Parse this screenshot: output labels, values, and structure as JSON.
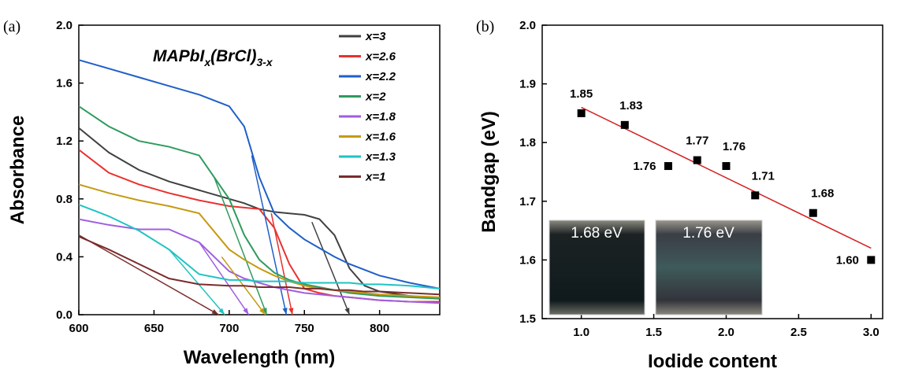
{
  "chart_data": [
    {
      "type": "line",
      "panel_label": "(a)",
      "title_parts": [
        "MAPbI",
        "x",
        "(BrCl)",
        "3-x"
      ],
      "x_label": "Wavelength (nm)",
      "y_label": "Absorbance",
      "x": [
        600,
        620,
        640,
        660,
        680,
        700,
        710,
        720,
        730,
        740,
        750,
        760,
        770,
        780,
        790,
        800,
        820,
        840
      ],
      "series": [
        {
          "name": "x=3",
          "color": "#404040",
          "values": [
            1.29,
            1.12,
            1.0,
            0.92,
            0.86,
            0.8,
            0.77,
            0.73,
            0.71,
            0.7,
            0.69,
            0.66,
            0.55,
            0.32,
            0.2,
            0.16,
            0.13,
            0.11
          ],
          "tangent_x": [
            755,
            780
          ],
          "tangent_y": [
            0.64,
            0
          ]
        },
        {
          "name": "x=2.6",
          "color": "#e8312f",
          "values": [
            1.14,
            0.98,
            0.9,
            0.84,
            0.79,
            0.75,
            0.74,
            0.73,
            0.6,
            0.35,
            0.18,
            0.15,
            0.13,
            0.12,
            0.11,
            0.1,
            0.09,
            0.09
          ],
          "tangent_x": [
            728,
            742
          ],
          "tangent_y": [
            0.7,
            0
          ]
        },
        {
          "name": "x=2.2",
          "color": "#1f5fc9",
          "values": [
            1.76,
            1.7,
            1.64,
            1.58,
            1.52,
            1.44,
            1.3,
            0.95,
            0.7,
            0.6,
            0.52,
            0.46,
            0.4,
            0.35,
            0.31,
            0.27,
            0.22,
            0.18
          ],
          "tangent_x": [
            715,
            738
          ],
          "tangent_y": [
            1.1,
            0
          ]
        },
        {
          "name": "x=2",
          "color": "#2e9a5e",
          "values": [
            1.44,
            1.3,
            1.2,
            1.16,
            1.1,
            0.8,
            0.55,
            0.38,
            0.29,
            0.24,
            0.21,
            0.19,
            0.17,
            0.15,
            0.14,
            0.13,
            0.12,
            0.11
          ],
          "tangent_x": [
            690,
            725
          ],
          "tangent_y": [
            0.95,
            0
          ]
        },
        {
          "name": "x=1.8",
          "color": "#a05ee0",
          "values": [
            0.66,
            0.62,
            0.59,
            0.59,
            0.5,
            0.3,
            0.25,
            0.22,
            0.19,
            0.17,
            0.15,
            0.14,
            0.13,
            0.12,
            0.11,
            0.1,
            0.09,
            0.08
          ],
          "tangent_x": [
            680,
            713
          ],
          "tangent_y": [
            0.5,
            0
          ]
        },
        {
          "name": "x=1.6",
          "color": "#c49a12",
          "values": [
            0.9,
            0.84,
            0.79,
            0.75,
            0.7,
            0.45,
            0.38,
            0.32,
            0.27,
            0.23,
            0.2,
            0.18,
            0.17,
            0.16,
            0.15,
            0.14,
            0.13,
            0.12
          ],
          "tangent_x": [
            695,
            724
          ],
          "tangent_y": [
            0.4,
            0
          ]
        },
        {
          "name": "x=1.3",
          "color": "#1fc3c3",
          "values": [
            0.76,
            0.68,
            0.58,
            0.45,
            0.28,
            0.24,
            0.24,
            0.23,
            0.23,
            0.23,
            0.22,
            0.22,
            0.22,
            0.22,
            0.21,
            0.21,
            0.2,
            0.18
          ],
          "tangent_x": [
            660,
            697
          ],
          "tangent_y": [
            0.45,
            0
          ]
        },
        {
          "name": "x=1",
          "color": "#7a2c2c",
          "values": [
            0.54,
            0.45,
            0.35,
            0.25,
            0.21,
            0.2,
            0.2,
            0.19,
            0.19,
            0.19,
            0.18,
            0.18,
            0.17,
            0.17,
            0.16,
            0.16,
            0.15,
            0.14
          ],
          "tangent_x": [
            600,
            693
          ],
          "tangent_y": [
            0.55,
            0
          ]
        }
      ],
      "xlim": [
        600,
        840
      ],
      "xticks": [
        600,
        650,
        700,
        750,
        800
      ],
      "ylim": [
        0,
        2.0
      ],
      "yticks": [
        {
          "value": 0,
          "label": "0.0"
        },
        {
          "value": 0.4,
          "label": "0.4"
        },
        {
          "value": 0.8,
          "label": "0.8"
        },
        {
          "value": 1.2,
          "label": "1.2"
        },
        {
          "value": 1.6,
          "label": "1.6"
        },
        {
          "value": 2.0,
          "label": "2.0"
        }
      ],
      "legend": "upper right"
    },
    {
      "type": "scatter",
      "panel_label": "(b)",
      "x_label": "Iodide content",
      "y_label": "Bandgap (eV)",
      "x": [
        1.0,
        1.3,
        1.6,
        1.8,
        2.0,
        2.2,
        2.6,
        3.0
      ],
      "values": [
        1.85,
        1.83,
        1.76,
        1.77,
        1.76,
        1.71,
        1.68,
        1.6
      ],
      "value_labels": [
        "1.85",
        "1.83",
        "1.76",
        "1.77",
        "1.76",
        "1.71",
        "1.68",
        "1.60"
      ],
      "color": "#000000",
      "fit": {
        "x": [
          1.0,
          3.0
        ],
        "y": [
          1.86,
          1.62
        ],
        "color": "#d42020"
      },
      "inset_labels": [
        "1.68 eV",
        "1.76 eV"
      ],
      "xlim": [
        0.73,
        3.08
      ],
      "xticks": [
        {
          "value": 1.0,
          "label": "1.0"
        },
        {
          "value": 1.5,
          "label": "1.5"
        },
        {
          "value": 2.0,
          "label": "2.0"
        },
        {
          "value": 2.5,
          "label": "2.5"
        },
        {
          "value": 3.0,
          "label": "3.0"
        }
      ],
      "ylim": [
        1.5,
        2.0
      ],
      "yticks": [
        {
          "value": 1.5,
          "label": "1.5"
        },
        {
          "value": 1.6,
          "label": "1.6"
        },
        {
          "value": 1.7,
          "label": "1.7"
        },
        {
          "value": 1.8,
          "label": "1.8"
        },
        {
          "value": 1.9,
          "label": "1.9"
        },
        {
          "value": 2.0,
          "label": "2.0"
        }
      ]
    }
  ]
}
